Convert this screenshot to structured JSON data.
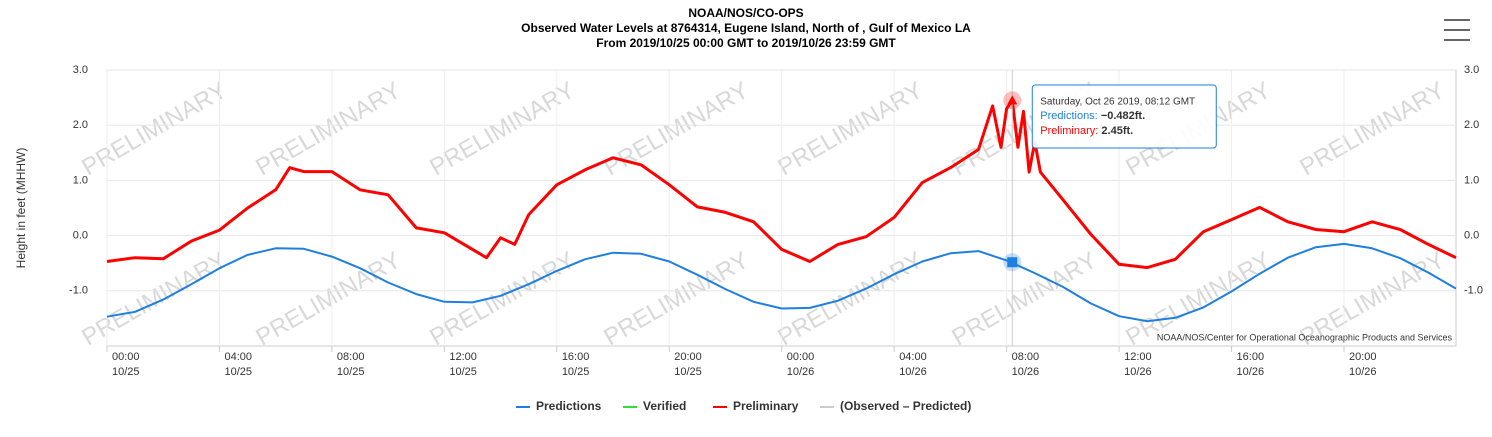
{
  "chart_data": {
    "type": "line",
    "title": "NOAA/NOS/CO-OPS",
    "subtitle": "Observed Water Levels at 8764314, Eugene Island, North of , Gulf of Mexico LA",
    "subtitle2": "From 2019/10/25 00:00 GMT to 2019/10/26 23:59 GMT",
    "y_label": "Height in feet (MHHW)",
    "watermark": "PRELIMINARY",
    "credit": "NOAA/NOS/Center for Operational Oceanographic Products and Services",
    "xlim": [
      "2019/10/25 00:00",
      "2019/10/26 23:59"
    ],
    "xticks": [
      {
        "value": "2019/10/25 00:00",
        "label": [
          "00:00",
          "10/25"
        ]
      },
      {
        "value": "2019/10/25 04:00",
        "label": [
          "04:00",
          "10/25"
        ]
      },
      {
        "value": "2019/10/25 08:00",
        "label": [
          "08:00",
          "10/25"
        ]
      },
      {
        "value": "2019/10/25 12:00",
        "label": [
          "12:00",
          "10/25"
        ]
      },
      {
        "value": "2019/10/25 16:00",
        "label": [
          "16:00",
          "10/25"
        ]
      },
      {
        "value": "2019/10/25 20:00",
        "label": [
          "20:00",
          "10/25"
        ]
      },
      {
        "value": "2019/10/26 00:00",
        "label": [
          "00:00",
          "10/26"
        ]
      },
      {
        "value": "2019/10/26 04:00",
        "label": [
          "04:00",
          "10/26"
        ]
      },
      {
        "value": "2019/10/26 08:00",
        "label": [
          "08:00",
          "10/26"
        ]
      },
      {
        "value": "2019/10/26 12:00",
        "label": [
          "12:00",
          "10/26"
        ]
      },
      {
        "value": "2019/10/26 16:00",
        "label": [
          "16:00",
          "10/26"
        ]
      },
      {
        "value": "2019/10/26 20:00",
        "label": [
          "20:00",
          "10/26"
        ]
      }
    ],
    "ylim": [
      -2,
      3
    ],
    "yticks": [
      {
        "value": -1,
        "label": "-1.0"
      },
      {
        "value": 0,
        "label": "0.0"
      },
      {
        "value": 1,
        "label": "1.0"
      },
      {
        "value": 2,
        "label": "2.0"
      },
      {
        "value": 3,
        "label": "3.0"
      }
    ],
    "grid": true,
    "series": [
      {
        "name": "Predictions",
        "color": "#1f7fe0",
        "x": [
          "2019/10/25 00:00",
          "2019/10/25 01:00",
          "2019/10/25 02:00",
          "2019/10/25 03:00",
          "2019/10/25 04:00",
          "2019/10/25 05:00",
          "2019/10/25 06:00",
          "2019/10/25 07:00",
          "2019/10/25 08:00",
          "2019/10/25 09:00",
          "2019/10/25 10:00",
          "2019/10/25 11:00",
          "2019/10/25 12:00",
          "2019/10/25 13:00",
          "2019/10/25 14:00",
          "2019/10/25 15:00",
          "2019/10/25 16:00",
          "2019/10/25 17:00",
          "2019/10/25 18:00",
          "2019/10/25 19:00",
          "2019/10/25 20:00",
          "2019/10/25 21:00",
          "2019/10/25 22:00",
          "2019/10/25 23:00",
          "2019/10/26 00:00",
          "2019/10/26 01:00",
          "2019/10/26 02:00",
          "2019/10/26 03:00",
          "2019/10/26 04:00",
          "2019/10/26 05:00",
          "2019/10/26 06:00",
          "2019/10/26 07:00",
          "2019/10/26 08:00",
          "2019/10/26 09:00",
          "2019/10/26 10:00",
          "2019/10/26 11:00",
          "2019/10/26 12:00",
          "2019/10/26 13:00",
          "2019/10/26 14:00",
          "2019/10/26 15:00",
          "2019/10/26 16:00",
          "2019/10/26 17:00",
          "2019/10/26 18:00",
          "2019/10/26 19:00",
          "2019/10/26 20:00",
          "2019/10/26 21:00",
          "2019/10/26 22:00",
          "2019/10/26 23:00",
          "2019/10/26 23:59"
        ],
        "values": [
          -1.47,
          -1.38,
          -1.16,
          -0.88,
          -0.59,
          -0.35,
          -0.23,
          -0.24,
          -0.38,
          -0.59,
          -0.85,
          -1.06,
          -1.2,
          -1.21,
          -1.09,
          -0.88,
          -0.64,
          -0.43,
          -0.31,
          -0.33,
          -0.47,
          -0.71,
          -0.97,
          -1.2,
          -1.32,
          -1.31,
          -1.18,
          -0.96,
          -0.7,
          -0.47,
          -0.32,
          -0.28,
          -0.45,
          -0.68,
          -0.93,
          -1.23,
          -1.46,
          -1.55,
          -1.49,
          -1.3,
          -1.01,
          -0.69,
          -0.4,
          -0.21,
          -0.15,
          -0.23,
          -0.41,
          -0.67,
          -0.96
        ]
      },
      {
        "name": "Verified",
        "color": "#33dd33",
        "x": [],
        "values": []
      },
      {
        "name": "Preliminary",
        "color": "#ff0000",
        "x": [
          "2019/10/25 00:00",
          "2019/10/25 01:00",
          "2019/10/25 02:00",
          "2019/10/25 03:00",
          "2019/10/25 04:00",
          "2019/10/25 05:00",
          "2019/10/25 06:00",
          "2019/10/25 06:30",
          "2019/10/25 07:00",
          "2019/10/25 08:00",
          "2019/10/25 09:00",
          "2019/10/25 10:00",
          "2019/10/25 11:00",
          "2019/10/25 12:00",
          "2019/10/25 13:00",
          "2019/10/25 13:30",
          "2019/10/25 14:00",
          "2019/10/25 14:30",
          "2019/10/25 15:00",
          "2019/10/25 16:00",
          "2019/10/25 17:00",
          "2019/10/25 18:00",
          "2019/10/25 19:00",
          "2019/10/25 20:00",
          "2019/10/25 21:00",
          "2019/10/25 22:00",
          "2019/10/25 23:00",
          "2019/10/26 00:00",
          "2019/10/26 01:00",
          "2019/10/26 02:00",
          "2019/10/26 03:00",
          "2019/10/26 04:00",
          "2019/10/26 05:00",
          "2019/10/26 06:00",
          "2019/10/26 07:00",
          "2019/10/26 07:30",
          "2019/10/26 07:48",
          "2019/10/26 08:00",
          "2019/10/26 08:12",
          "2019/10/26 08:24",
          "2019/10/26 08:36",
          "2019/10/26 08:48",
          "2019/10/26 09:00",
          "2019/10/26 09:12",
          "2019/10/26 10:00",
          "2019/10/26 11:00",
          "2019/10/26 12:00",
          "2019/10/26 13:00",
          "2019/10/26 14:00",
          "2019/10/26 15:00",
          "2019/10/26 16:00",
          "2019/10/26 17:00",
          "2019/10/26 18:00",
          "2019/10/26 19:00",
          "2019/10/26 20:00",
          "2019/10/26 21:00",
          "2019/10/26 22:00",
          "2019/10/26 23:00",
          "2019/10/26 23:59"
        ],
        "values": [
          -0.47,
          -0.4,
          -0.42,
          -0.1,
          0.1,
          0.5,
          0.83,
          1.23,
          1.16,
          1.16,
          0.83,
          0.74,
          0.14,
          0.05,
          -0.25,
          -0.4,
          -0.04,
          -0.16,
          0.38,
          0.92,
          1.19,
          1.41,
          1.28,
          0.92,
          0.52,
          0.42,
          0.25,
          -0.25,
          -0.47,
          -0.16,
          -0.02,
          0.33,
          0.96,
          1.23,
          1.56,
          2.35,
          1.6,
          2.3,
          2.45,
          1.6,
          2.25,
          1.15,
          1.7,
          1.15,
          0.65,
          0.02,
          -0.52,
          -0.58,
          -0.43,
          0.07,
          0.29,
          0.51,
          0.25,
          0.11,
          0.07,
          0.25,
          0.11,
          -0.16,
          -0.4
        ]
      },
      {
        "name": "(Observed – Predicted)",
        "color": "#cccccc",
        "x": [],
        "values": []
      }
    ],
    "tooltip": {
      "x": "2019/10/26 08:12",
      "title": "Saturday, Oct 26 2019, 08:12 GMT",
      "items": [
        {
          "name": "Predictions:",
          "value": -0.482,
          "label": "−0.482ft.",
          "series": 0
        },
        {
          "name": "Preliminary:",
          "value": 2.45,
          "label": "2.45ft.",
          "series": 2
        }
      ]
    }
  }
}
